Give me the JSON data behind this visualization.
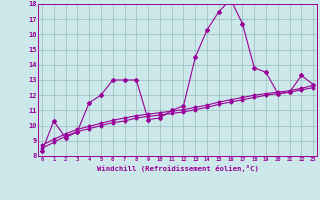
{
  "x": [
    0,
    1,
    2,
    3,
    4,
    5,
    6,
    7,
    8,
    9,
    10,
    11,
    12,
    13,
    14,
    15,
    16,
    17,
    18,
    19,
    20,
    21,
    22,
    23
  ],
  "y_main": [
    8.3,
    10.3,
    9.2,
    9.6,
    11.5,
    12.0,
    13.0,
    13.0,
    13.0,
    10.4,
    10.5,
    11.0,
    11.3,
    14.5,
    16.3,
    17.5,
    18.3,
    16.7,
    13.8,
    13.5,
    12.1,
    12.2,
    13.3,
    12.7
  ],
  "y_trend1": [
    8.5,
    8.9,
    9.3,
    9.6,
    9.8,
    10.0,
    10.2,
    10.3,
    10.5,
    10.6,
    10.7,
    10.8,
    10.9,
    11.05,
    11.2,
    11.4,
    11.55,
    11.7,
    11.85,
    12.0,
    12.1,
    12.2,
    12.35,
    12.5
  ],
  "y_trend2": [
    8.7,
    9.1,
    9.45,
    9.75,
    9.95,
    10.15,
    10.35,
    10.5,
    10.65,
    10.75,
    10.85,
    10.95,
    11.05,
    11.2,
    11.35,
    11.55,
    11.7,
    11.85,
    12.0,
    12.1,
    12.2,
    12.3,
    12.45,
    12.65
  ],
  "line_color": "#990099",
  "bg_color": "#cce8ea",
  "grid_color": "#99bbbb",
  "xlabel": "Windchill (Refroidissement éolien,°C)",
  "ymin": 8,
  "ymax": 18,
  "xmin": 0,
  "xmax": 23
}
